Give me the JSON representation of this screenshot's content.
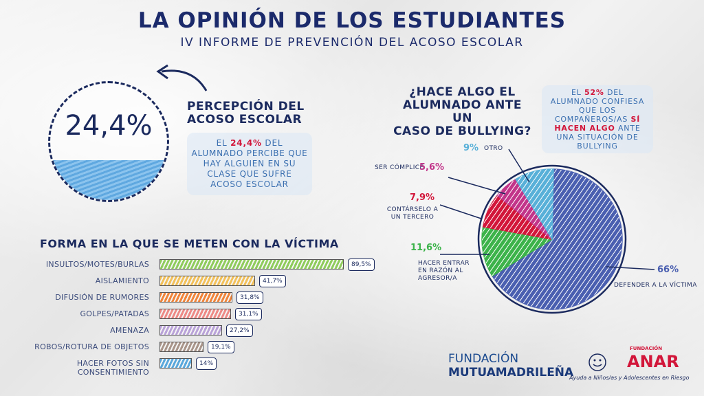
{
  "header": {
    "title": "LA OPINIÓN DE LOS ESTUDIANTES",
    "subtitle": "IV INFORME DE PREVENCIÓN DEL ACOSO ESCOLAR"
  },
  "perception": {
    "value_label": "24,4%",
    "fill_fraction": 0.244,
    "title_line1": "PERCEPCIÓN DEL",
    "title_line2": "ACOSO ESCOLAR",
    "note_pre": "EL ",
    "note_hl": "24,4%",
    "note_post": " DEL ALUMNADO PERCIBE QUE HAY ALGUIEN EN SU CLASE QUE SUFRE ACOSO ESCOLAR"
  },
  "action": {
    "title_line1": "¿HACE ALGO EL",
    "title_line2": "ALUMNADO ANTE UN",
    "title_line3": "CASO DE BULLYING?",
    "note_pre": "EL ",
    "note_hl1": "52%",
    "note_mid": " DEL ALUMNADO CONFIESA QUE LOS COMPAÑEROS/AS ",
    "note_hl2": "SÍ HACEN ALGO",
    "note_post": " ANTE UNA SITUACIÓN DE BULLYING"
  },
  "bars": {
    "title": "FORMA EN LA QUE SE METEN CON LA VÍCTIMA"
  },
  "logos": {
    "mutua_line1": "FUNDACIÓN",
    "mutua_line2": "MUTUAMADRILEÑA",
    "anar_small": "FUNDACIÓN",
    "anar": "ANAR",
    "anar_tagline": "Ayuda a Niños/as y Adolescentes en Riesgo"
  },
  "colors": {
    "navy": "#1b2a5e",
    "red": "#d2163a",
    "blue": "#3a6fb0"
  },
  "chart_data": [
    {
      "type": "bar",
      "title": "FORMA EN LA QUE SE METEN CON LA VÍCTIMA",
      "categories": [
        "INSULTOS/MOTES/BURLAS",
        "AISLAMIENTO",
        "DIFUSIÓN DE RUMORES",
        "GOLPES/PATADAS",
        "AMENAZA",
        "ROBOS/ROTURA DE OBJETOS",
        "HACER FOTOS SIN CONSENTIMIENTO"
      ],
      "values": [
        89.5,
        41.7,
        31.8,
        31.1,
        27.2,
        19.1,
        14
      ],
      "value_labels": [
        "89,5%",
        "41,7%",
        "31,8%",
        "31,1%",
        "27,2%",
        "19,1%",
        "14%"
      ],
      "colors": [
        "#8fcc5c",
        "#f3c15a",
        "#f0843a",
        "#ee8a86",
        "#b9a2d8",
        "#a9958a",
        "#5aa8dc"
      ],
      "xlim": [
        0,
        100
      ]
    },
    {
      "type": "pie",
      "title": "¿HACE ALGO EL ALUMNADO ANTE UN CASO DE BULLYING?",
      "slices": [
        {
          "label": "DEFENDER A LA VÍCTIMA",
          "value": 66,
          "value_label": "66%",
          "color": "#4a5fb0"
        },
        {
          "label": "HACER ENTRAR EN RAZÓN AL AGRESOR/A",
          "value": 11.6,
          "value_label": "11,6%",
          "color": "#3cb34a"
        },
        {
          "label": "CONTÁRSELO A UN TERCERO",
          "value": 7.9,
          "value_label": "7,9%",
          "color": "#d2163a"
        },
        {
          "label": "SER CÓMPLICE",
          "value": 5.6,
          "value_label": "5,6%",
          "color": "#c2358a"
        },
        {
          "label": "OTRO",
          "value": 9,
          "value_label": "9%",
          "color": "#58b0d8"
        }
      ]
    }
  ]
}
